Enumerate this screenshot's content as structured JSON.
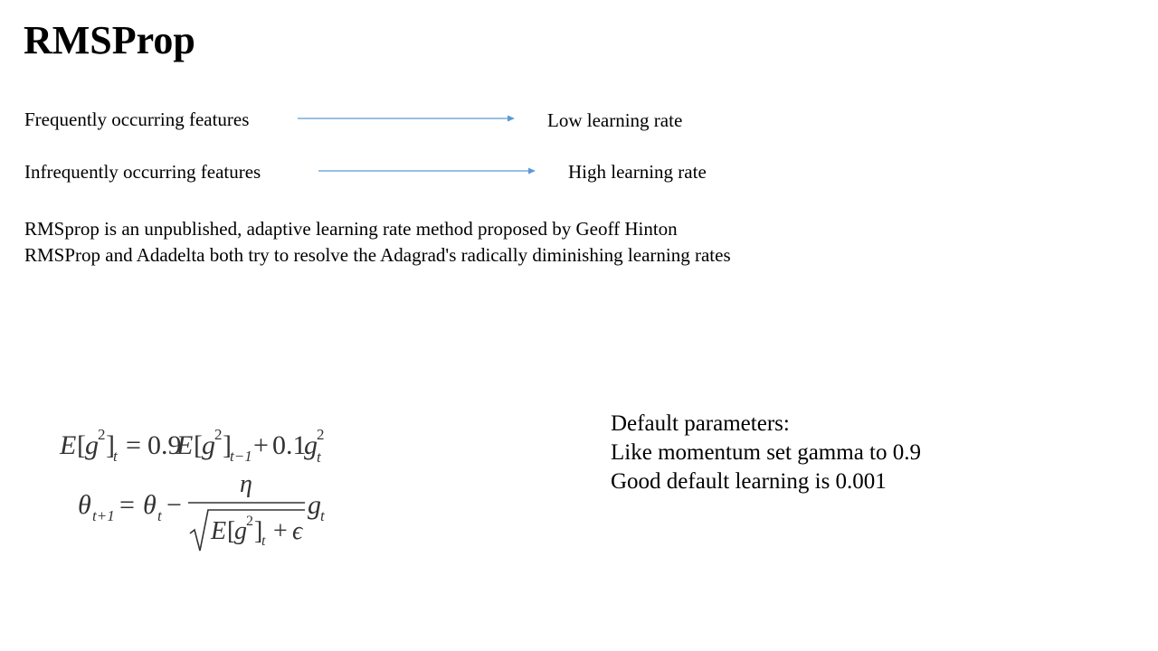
{
  "slide": {
    "title": "RMSProp",
    "mappings": [
      {
        "feature": "Frequently occurring features",
        "rate": "Low learning rate"
      },
      {
        "feature": "Infrequently occurring features",
        "rate": "High learning rate"
      }
    ],
    "description": [
      "RMSprop is an unpublished, adaptive learning rate method proposed by Geoff Hinton",
      "RMSProp and Adadelta both try to resolve the Adagrad's radically diminishing learning rates"
    ],
    "formula": {
      "eq1": {
        "lhs_E": "E",
        "lhs_g": "g",
        "lhs_sq": "2",
        "lhs_t": "t",
        "equals": "=",
        "c1": "0.9",
        "rhs_E": "E",
        "rhs_g": "g",
        "rhs_sq": "2",
        "rhs_t": "t−1",
        "plus": "+",
        "c2": "0.1",
        "g": "g",
        "g_sq": "2",
        "g_t": "t"
      },
      "eq2": {
        "theta": "θ",
        "theta_sub": "t+1",
        "equals": "=",
        "theta_r": "θ",
        "theta_r_sub": "t",
        "minus": "−",
        "eta": "η",
        "den_E": "E",
        "den_g": "g",
        "den_sq": "2",
        "den_t": "t",
        "den_plus": "+",
        "epsilon": "ϵ",
        "g": "g",
        "g_t": "t"
      }
    },
    "params": [
      "Default parameters:",
      "Like momentum set gamma to 0.9",
      "Good default learning is 0.001"
    ],
    "colors": {
      "arrow": "#5B9BD5",
      "formula_text": "#333333"
    }
  }
}
